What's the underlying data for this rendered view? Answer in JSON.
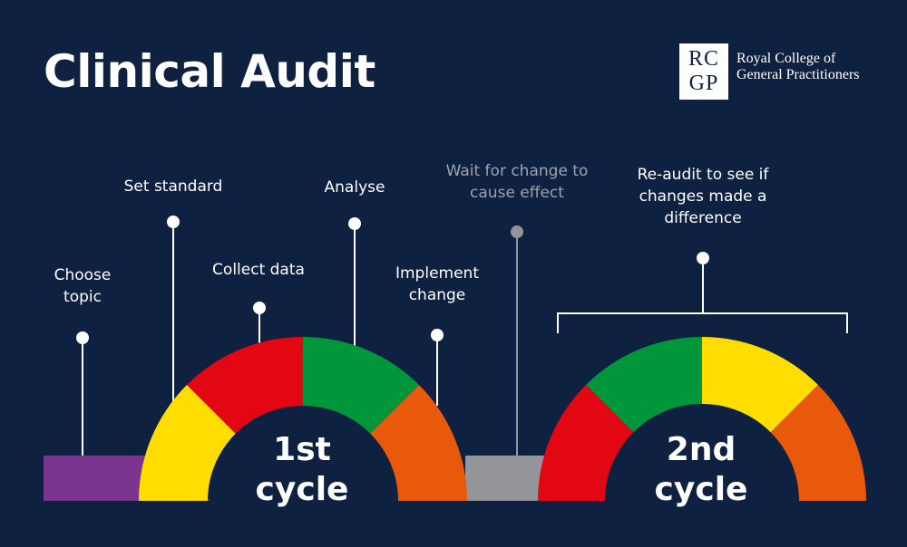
{
  "title": "Clinical Audit",
  "logo": {
    "monogram_top": "RC",
    "monogram_bottom": "GP",
    "name_line1": "Royal College of",
    "name_line2": "General Practitioners"
  },
  "steps": [
    {
      "id": "choose-topic",
      "line1": "Choose",
      "line2": "topic",
      "color": "#7b3490"
    },
    {
      "id": "set-standard",
      "line1": "Set standard",
      "line2": "",
      "color": "#ffdd00"
    },
    {
      "id": "collect-data",
      "line1": "Collect data",
      "line2": "",
      "color": "#e30613"
    },
    {
      "id": "analyse",
      "line1": "Analyse",
      "line2": "",
      "color": "#009639"
    },
    {
      "id": "implement-change",
      "line1": "Implement",
      "line2": "change",
      "color": "#e8590c"
    },
    {
      "id": "wait",
      "line1": "Wait for change to",
      "line2": "cause effect",
      "color": "#939598"
    },
    {
      "id": "re-audit",
      "line1": "Re-audit to see if",
      "line2": "changes made a",
      "line3": "difference"
    }
  ],
  "cycles": {
    "first": {
      "line1": "1st",
      "line2": "cycle"
    },
    "second": {
      "line1": "2nd",
      "line2": "cycle"
    }
  },
  "second_cycle_colors": [
    "#e30613",
    "#009639",
    "#ffdd00",
    "#e8590c"
  ],
  "background_color": "#0f2141"
}
